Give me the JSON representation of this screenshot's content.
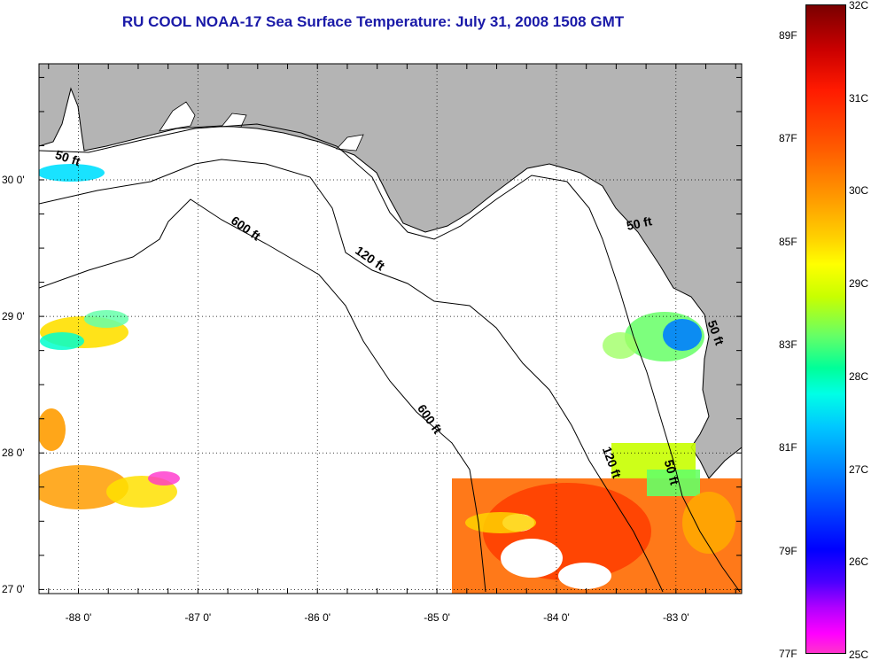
{
  "title": "RU COOL  NOAA-17  Sea Surface Temperature:  July 31, 2008 1508 GMT",
  "map": {
    "lon_range": [
      -88.33,
      -82.45
    ],
    "lat_range": [
      26.97,
      30.85
    ],
    "lat_labels": [
      "30 0'",
      "29 0'",
      "28 0'",
      "27 0'"
    ],
    "lat_values": [
      30,
      29,
      28,
      27
    ],
    "lon_labels": [
      "-88 0'",
      "-87 0'",
      "-86 0'",
      "-85 0'",
      "-84 0'",
      "-83 0'"
    ],
    "lon_values": [
      -88,
      -87,
      -86,
      -85,
      -84,
      -83
    ],
    "contour_labels": [
      {
        "text": "50 ft",
        "lon": -88.1,
        "lat": 30.13,
        "rot": 18
      },
      {
        "text": "600 ft",
        "lon": -86.62,
        "lat": 29.62,
        "rot": 35
      },
      {
        "text": "120 ft",
        "lon": -85.58,
        "lat": 29.4,
        "rot": 35
      },
      {
        "text": "50 ft",
        "lon": -83.3,
        "lat": 29.65,
        "rot": -12
      },
      {
        "text": "600 ft",
        "lon": -85.09,
        "lat": 28.23,
        "rot": 55
      },
      {
        "text": "120 ft",
        "lon": -83.57,
        "lat": 27.92,
        "rot": 70
      },
      {
        "text": "50 ft",
        "lon": -83.07,
        "lat": 27.85,
        "rot": 75
      },
      {
        "text": "50 ft",
        "lon": -82.7,
        "lat": 28.87,
        "rot": 70
      }
    ],
    "land_color": "#b4b4b4",
    "ocean_color": "#ffffff"
  },
  "colorbar": {
    "f_labels": [
      "89F",
      "87F",
      "85F",
      "83F",
      "81F",
      "79F",
      "77F"
    ],
    "c_labels": [
      "32C",
      "31C",
      "30C",
      "29C",
      "28C",
      "27C",
      "26C",
      "25C"
    ],
    "colors": [
      "#7a0000",
      "#ff1a00",
      "#ff9c00",
      "#ffff00",
      "#00ff99",
      "#00c8ff",
      "#0000ff",
      "#ff00ff"
    ]
  }
}
